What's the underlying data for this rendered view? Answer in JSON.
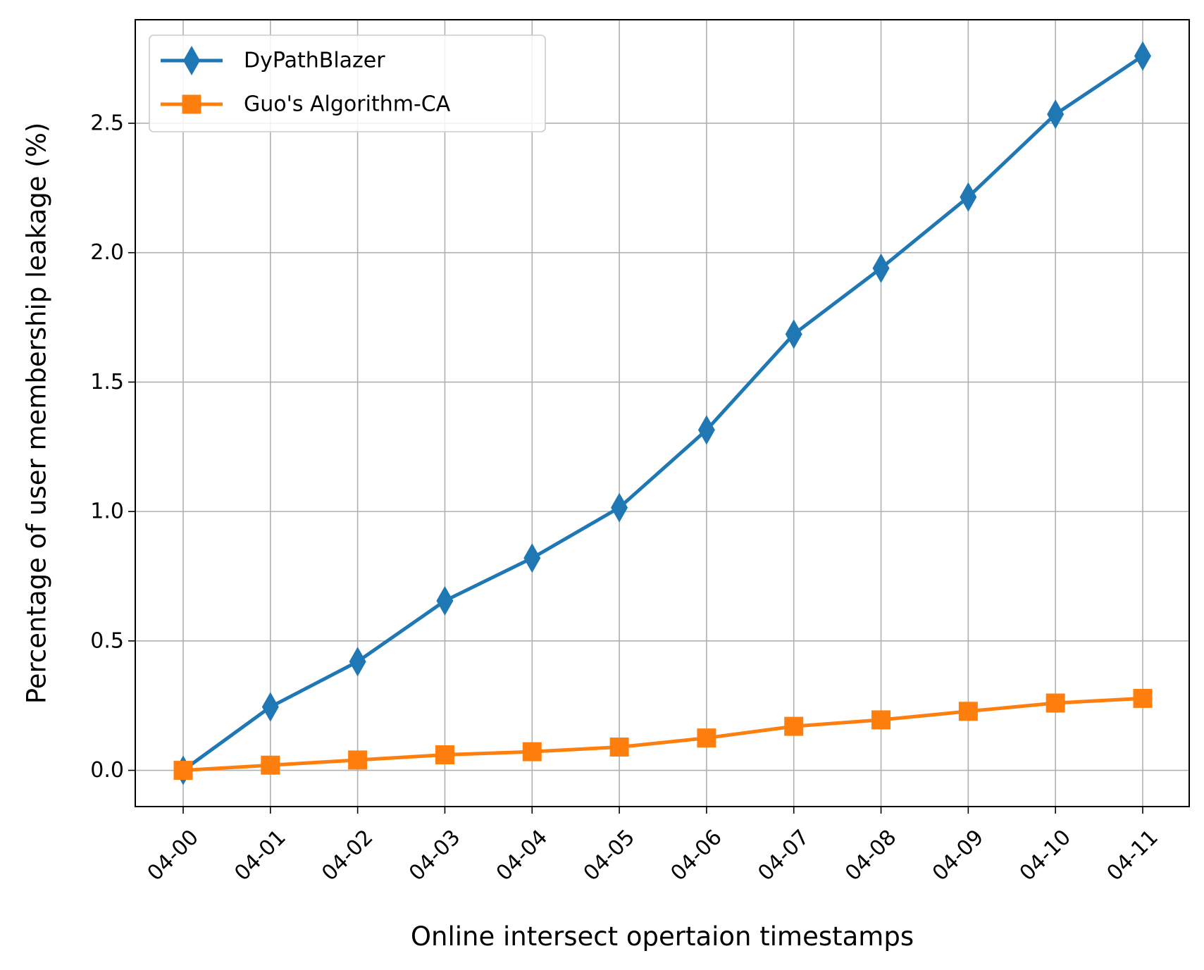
{
  "chart_data": {
    "type": "line",
    "title": "",
    "xlabel": "Online intersect opertaion timestamps",
    "ylabel": "Percentage of user membership leakage (%)",
    "categories": [
      "04-00",
      "04-01",
      "04-02",
      "04-03",
      "04-04",
      "04-05",
      "04-06",
      "04-07",
      "04-08",
      "04-09",
      "04-10",
      "04-11"
    ],
    "ylim": [
      -0.14,
      2.9
    ],
    "yticks": [
      "0.0",
      "0.5",
      "1.0",
      "1.5",
      "2.0",
      "2.5"
    ],
    "grid": true,
    "legend_position": "top-left",
    "series": [
      {
        "name": "DyPathBlazer",
        "color": "#1f77b4",
        "marker": "thin-diamond",
        "values": [
          0.0,
          0.245,
          0.42,
          0.655,
          0.82,
          1.015,
          1.315,
          1.685,
          1.94,
          2.215,
          2.535,
          2.76
        ]
      },
      {
        "name": "Guo's Algorithm-CA",
        "color": "#ff7f0e",
        "marker": "square",
        "values": [
          0.0,
          0.02,
          0.04,
          0.06,
          0.072,
          0.09,
          0.125,
          0.17,
          0.195,
          0.228,
          0.26,
          0.278
        ]
      }
    ]
  }
}
